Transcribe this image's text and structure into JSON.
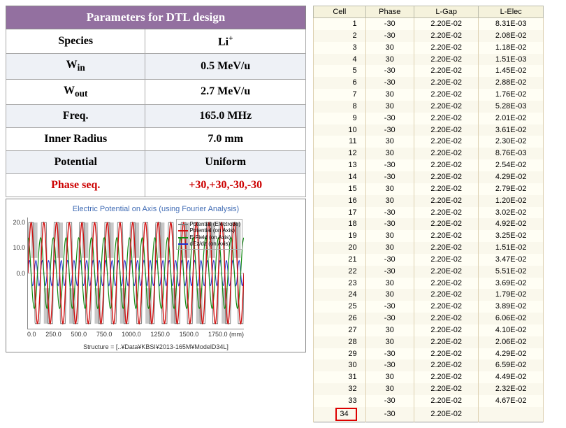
{
  "param_table": {
    "header_bg": "#9370a0",
    "header_text_color": "#ffffff",
    "even_row_bg": "#eef1f6",
    "border_color": "#888888",
    "header": "Parameters for DTL design",
    "rows": [
      {
        "label": "Species",
        "value": "Li",
        "sup": "+"
      },
      {
        "label": "W",
        "sub": "in",
        "value": "0.5 MeV/u"
      },
      {
        "label": "W",
        "sub": "out",
        "value": "2.7 MeV/u"
      },
      {
        "label": "Freq.",
        "value": "165.0 MHz"
      },
      {
        "label": "Inner Radius",
        "value": "7.0 mm"
      },
      {
        "label": "Potential",
        "value": "Uniform"
      },
      {
        "label": "Phase seq.",
        "value": "+30,+30,-30,-30",
        "red": true
      }
    ]
  },
  "chart": {
    "title": "Electric Potential on Axis (using Fourier Analysis)",
    "footer": "Structure = [..¥Data¥KBSI¥2013-165M¥ModelD34L]",
    "xlim": [
      0,
      1750
    ],
    "ylim": [
      -22,
      22
    ],
    "y_ticks": [
      "20.0",
      "10.0",
      "0.0"
    ],
    "x_ticks": [
      "0.0",
      "250.0",
      "500.0",
      "750.0",
      "1000.0",
      "1250.0",
      "1500.0",
      "1750.0 (mm)"
    ],
    "background_color": "#ffffff",
    "electrode_color": "#c8c8c8",
    "series": {
      "potential_electrode": {
        "label": "Potential (Electrode)",
        "color": "#808080",
        "amplitude": 20,
        "cycles": 17
      },
      "potential_axis": {
        "label": "Potential (on Axis)",
        "color": "#d01010",
        "amplitude": 20,
        "cycles": 17
      },
      "efield_axis": {
        "label": "E-Field (on Axis)",
        "color": "#108a10",
        "amplitude": 14,
        "cycles": 17
      },
      "dezdz_axis": {
        "label": "dEz/dz (on Axis)",
        "color": "#2030d0",
        "amplitude": 5,
        "cycles": 34
      }
    }
  },
  "cell_table": {
    "bg": "#fffef4",
    "header_bg": "#f5f2dc",
    "highlight_color": "#d00000",
    "columns": [
      "Cell",
      "Phase",
      "L-Gap",
      "L-Elec"
    ],
    "rows": [
      [
        1,
        -30,
        "2.20E-02",
        "8.31E-03"
      ],
      [
        2,
        -30,
        "2.20E-02",
        "2.08E-02"
      ],
      [
        3,
        30,
        "2.20E-02",
        "1.18E-02"
      ],
      [
        4,
        30,
        "2.20E-02",
        "1.51E-03"
      ],
      [
        5,
        -30,
        "2.20E-02",
        "1.45E-02"
      ],
      [
        6,
        -30,
        "2.20E-02",
        "2.88E-02"
      ],
      [
        7,
        30,
        "2.20E-02",
        "1.76E-02"
      ],
      [
        8,
        30,
        "2.20E-02",
        "5.28E-03"
      ],
      [
        9,
        -30,
        "2.20E-02",
        "2.01E-02"
      ],
      [
        10,
        -30,
        "2.20E-02",
        "3.61E-02"
      ],
      [
        11,
        30,
        "2.20E-02",
        "2.30E-02"
      ],
      [
        12,
        30,
        "2.20E-02",
        "8.76E-03"
      ],
      [
        13,
        -30,
        "2.20E-02",
        "2.54E-02"
      ],
      [
        14,
        -30,
        "2.20E-02",
        "4.29E-02"
      ],
      [
        15,
        30,
        "2.20E-02",
        "2.79E-02"
      ],
      [
        16,
        30,
        "2.20E-02",
        "1.20E-02"
      ],
      [
        17,
        -30,
        "2.20E-02",
        "3.02E-02"
      ],
      [
        18,
        -30,
        "2.20E-02",
        "4.92E-02"
      ],
      [
        19,
        30,
        "2.20E-02",
        "3.25E-02"
      ],
      [
        20,
        30,
        "2.20E-02",
        "1.51E-02"
      ],
      [
        21,
        -30,
        "2.20E-02",
        "3.47E-02"
      ],
      [
        22,
        -30,
        "2.20E-02",
        "5.51E-02"
      ],
      [
        23,
        30,
        "2.20E-02",
        "3.69E-02"
      ],
      [
        24,
        30,
        "2.20E-02",
        "1.79E-02"
      ],
      [
        25,
        -30,
        "2.20E-02",
        "3.89E-02"
      ],
      [
        26,
        -30,
        "2.20E-02",
        "6.06E-02"
      ],
      [
        27,
        30,
        "2.20E-02",
        "4.10E-02"
      ],
      [
        28,
        30,
        "2.20E-02",
        "2.06E-02"
      ],
      [
        29,
        -30,
        "2.20E-02",
        "4.29E-02"
      ],
      [
        30,
        -30,
        "2.20E-02",
        "6.59E-02"
      ],
      [
        31,
        30,
        "2.20E-02",
        "4.49E-02"
      ],
      [
        32,
        30,
        "2.20E-02",
        "2.32E-02"
      ],
      [
        33,
        -30,
        "2.20E-02",
        "4.67E-02"
      ],
      [
        34,
        -30,
        "2.20E-02",
        ""
      ]
    ],
    "highlight_row": 34
  }
}
